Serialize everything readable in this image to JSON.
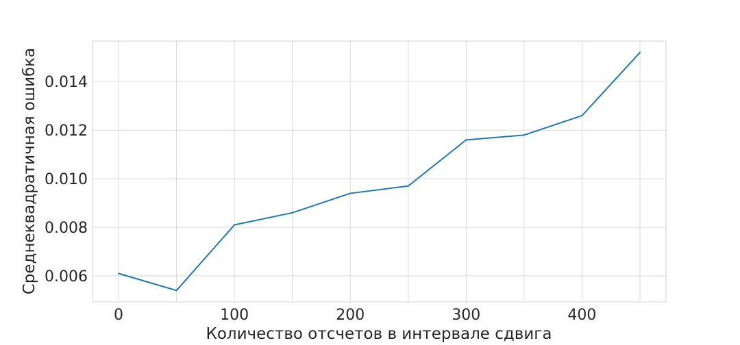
{
  "chart_data": {
    "type": "line",
    "title": "",
    "xlabel": "Количество отсчетов в интервале сдвига",
    "ylabel": "Среднеквадратичная ошибка",
    "x": [
      0,
      50,
      100,
      150,
      200,
      250,
      300,
      350,
      400,
      450
    ],
    "series": [
      {
        "values": [
          0.0061,
          0.0054,
          0.0081,
          0.0086,
          0.0094,
          0.0097,
          0.0116,
          0.0118,
          0.0126,
          0.0152
        ]
      }
    ],
    "xlim": [
      -22.5,
      472.5
    ],
    "ylim": [
      0.00493,
      0.01567
    ],
    "xticks": [
      0,
      100,
      200,
      300,
      400
    ],
    "xtick_labels": [
      "0",
      "100",
      "200",
      "300",
      "400"
    ],
    "xgrid": [
      0,
      50,
      100,
      150,
      200,
      250,
      300,
      350,
      400,
      450
    ],
    "yticks": [
      0.006,
      0.008,
      0.01,
      0.012,
      0.014
    ],
    "ytick_labels": [
      "0.006",
      "0.008",
      "0.010",
      "0.012",
      "0.014"
    ],
    "grid": true,
    "line_color": "#1f77b4",
    "grid_color": "#d9d9d9",
    "frame_color": "#d0d0d0"
  }
}
